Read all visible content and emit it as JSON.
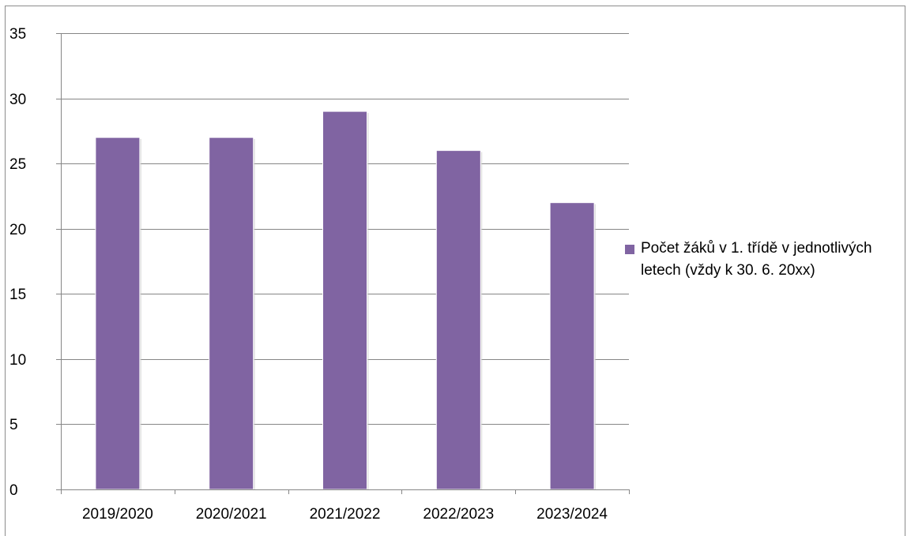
{
  "chart_data": {
    "type": "bar",
    "categories": [
      "2019/2020",
      "2020/2021",
      "2021/2022",
      "2022/2023",
      "2023/2024"
    ],
    "series": [
      {
        "name": "Počet žáků v 1. třídě v jednotlivých letech (vždy k 30. 6. 20xx)",
        "values": [
          27,
          27,
          29,
          26,
          22
        ],
        "color": "#8064a2"
      }
    ],
    "ylim": [
      0,
      35
    ],
    "yticks": [
      0,
      5,
      10,
      15,
      20,
      25,
      30,
      35
    ],
    "grid": true,
    "legend_position": "right",
    "title": "",
    "xlabel": "",
    "ylabel": ""
  },
  "colors": {
    "bar": "#8064a2",
    "gridline": "#868686",
    "axis": "#868686"
  }
}
